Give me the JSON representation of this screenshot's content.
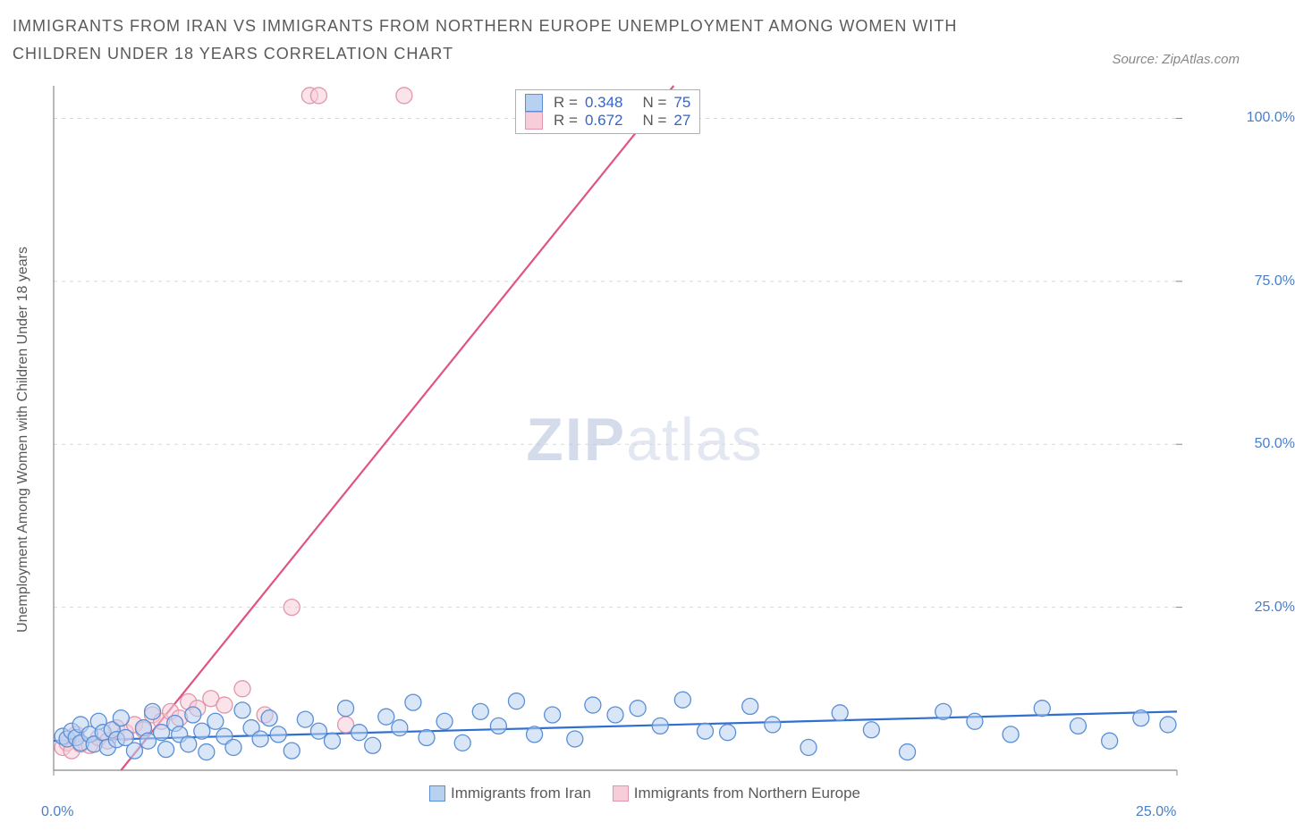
{
  "title": "IMMIGRANTS FROM IRAN VS IMMIGRANTS FROM NORTHERN EUROPE UNEMPLOYMENT AMONG WOMEN WITH CHILDREN UNDER 18 YEARS CORRELATION CHART",
  "source": "Source: ZipAtlas.com",
  "watermark_a": "ZIP",
  "watermark_b": "atlas",
  "ylabel": "Unemployment Among Women with Children Under 18 years",
  "chart": {
    "type": "scatter",
    "xlim": [
      0,
      25
    ],
    "ylim": [
      0,
      105
    ],
    "xticks": [
      {
        "v": 0,
        "label": "0.0%"
      },
      {
        "v": 25,
        "label": "25.0%"
      }
    ],
    "yticks": [
      {
        "v": 25,
        "label": "25.0%"
      },
      {
        "v": 50,
        "label": "50.0%"
      },
      {
        "v": 75,
        "label": "75.0%"
      },
      {
        "v": 100,
        "label": "100.0%"
      }
    ],
    "grid_color": "#d8d8d8",
    "axis_color": "#888888",
    "background": "#ffffff",
    "marker_radius": 9,
    "marker_stroke_width": 1.3,
    "trend_line_width": 2.2,
    "series": {
      "iran": {
        "label": "Immigrants from Iran",
        "fill": "#b9d1f0",
        "stroke": "#5a8fd6",
        "trend_color": "#2f6fd0",
        "R": "0.348",
        "N": "75",
        "trend": {
          "x1": 0,
          "y1": 4.5,
          "x2": 25,
          "y2": 9.0
        },
        "points": [
          [
            0.2,
            5.2
          ],
          [
            0.3,
            4.8
          ],
          [
            0.4,
            6.0
          ],
          [
            0.5,
            5.0
          ],
          [
            0.6,
            4.2
          ],
          [
            0.6,
            7.0
          ],
          [
            0.8,
            5.5
          ],
          [
            0.9,
            4.0
          ],
          [
            1.0,
            7.5
          ],
          [
            1.1,
            5.8
          ],
          [
            1.2,
            3.5
          ],
          [
            1.3,
            6.2
          ],
          [
            1.4,
            4.7
          ],
          [
            1.5,
            8.0
          ],
          [
            1.6,
            5.0
          ],
          [
            1.8,
            3.0
          ],
          [
            2.0,
            6.5
          ],
          [
            2.1,
            4.5
          ],
          [
            2.2,
            9.0
          ],
          [
            2.4,
            5.8
          ],
          [
            2.5,
            3.2
          ],
          [
            2.7,
            7.2
          ],
          [
            2.8,
            5.5
          ],
          [
            3.0,
            4.0
          ],
          [
            3.1,
            8.5
          ],
          [
            3.3,
            6.0
          ],
          [
            3.4,
            2.8
          ],
          [
            3.6,
            7.5
          ],
          [
            3.8,
            5.2
          ],
          [
            4.0,
            3.5
          ],
          [
            4.2,
            9.2
          ],
          [
            4.4,
            6.5
          ],
          [
            4.6,
            4.8
          ],
          [
            4.8,
            8.0
          ],
          [
            5.0,
            5.5
          ],
          [
            5.3,
            3.0
          ],
          [
            5.6,
            7.8
          ],
          [
            5.9,
            6.0
          ],
          [
            6.2,
            4.5
          ],
          [
            6.5,
            9.5
          ],
          [
            6.8,
            5.8
          ],
          [
            7.1,
            3.8
          ],
          [
            7.4,
            8.2
          ],
          [
            7.7,
            6.5
          ],
          [
            8.0,
            10.4
          ],
          [
            8.3,
            5.0
          ],
          [
            8.7,
            7.5
          ],
          [
            9.1,
            4.2
          ],
          [
            9.5,
            9.0
          ],
          [
            9.9,
            6.8
          ],
          [
            10.3,
            10.6
          ],
          [
            10.7,
            5.5
          ],
          [
            11.1,
            8.5
          ],
          [
            11.6,
            4.8
          ],
          [
            12.0,
            10.0
          ],
          [
            12.5,
            8.5
          ],
          [
            13.0,
            9.5
          ],
          [
            13.5,
            6.8
          ],
          [
            14.0,
            10.8
          ],
          [
            14.5,
            6.0
          ],
          [
            15.0,
            5.8
          ],
          [
            15.5,
            9.8
          ],
          [
            16.0,
            7.0
          ],
          [
            16.8,
            3.5
          ],
          [
            17.5,
            8.8
          ],
          [
            18.2,
            6.2
          ],
          [
            19.0,
            2.8
          ],
          [
            19.8,
            9.0
          ],
          [
            20.5,
            7.5
          ],
          [
            21.3,
            5.5
          ],
          [
            22.0,
            9.5
          ],
          [
            22.8,
            6.8
          ],
          [
            23.5,
            4.5
          ],
          [
            24.2,
            8.0
          ],
          [
            24.8,
            7.0
          ]
        ]
      },
      "neurope": {
        "label": "Immigrants from Northern Europe",
        "fill": "#f6cdd8",
        "stroke": "#e295ab",
        "trend_color": "#e0557f",
        "R": "0.672",
        "N": "27",
        "trend": {
          "x1": 1.5,
          "y1": 0,
          "x2": 13.8,
          "y2": 105
        },
        "points": [
          [
            0.2,
            3.5
          ],
          [
            0.3,
            4.2
          ],
          [
            0.4,
            3.0
          ],
          [
            0.5,
            5.5
          ],
          [
            0.6,
            4.0
          ],
          [
            0.8,
            3.8
          ],
          [
            1.0,
            5.0
          ],
          [
            1.2,
            4.5
          ],
          [
            1.4,
            6.5
          ],
          [
            1.6,
            5.8
          ],
          [
            1.8,
            7.0
          ],
          [
            2.0,
            6.2
          ],
          [
            2.2,
            8.5
          ],
          [
            2.4,
            7.5
          ],
          [
            2.6,
            9.0
          ],
          [
            2.8,
            8.0
          ],
          [
            3.0,
            10.5
          ],
          [
            3.2,
            9.5
          ],
          [
            3.5,
            11.0
          ],
          [
            3.8,
            10.0
          ],
          [
            4.2,
            12.5
          ],
          [
            4.7,
            8.5
          ],
          [
            5.3,
            25.0
          ],
          [
            5.7,
            103.5
          ],
          [
            5.9,
            103.5
          ],
          [
            7.8,
            103.5
          ],
          [
            6.5,
            7.0
          ]
        ]
      }
    }
  },
  "top_legend": [
    {
      "series": "iran",
      "R": "0.348",
      "N": "75"
    },
    {
      "series": "neurope",
      "R": "0.672",
      "N": "27"
    }
  ]
}
